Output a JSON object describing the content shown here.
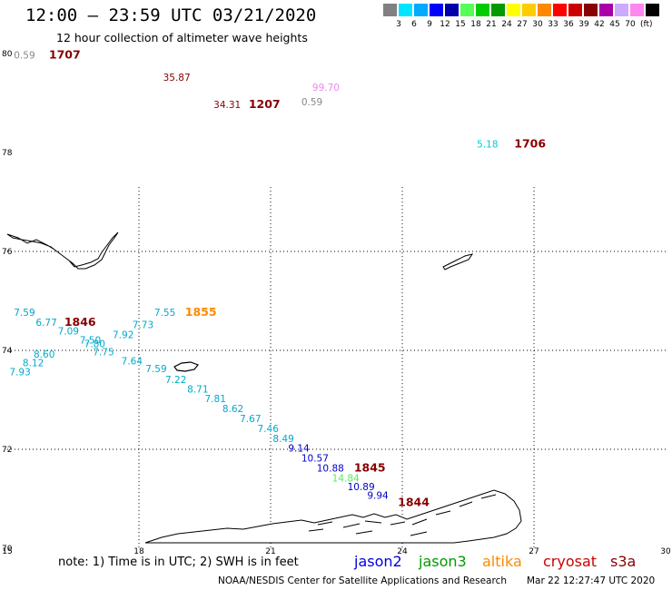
{
  "header": {
    "title": "12:00 – 23:59 UTC 03/21/2020",
    "subtitle": "12 hour collection of altimeter wave heights"
  },
  "legend": {
    "unit": "(ft)",
    "items": [
      {
        "value": "",
        "color": "#808080"
      },
      {
        "value": "3",
        "color": "#00e5ff"
      },
      {
        "value": "6",
        "color": "#00aaff"
      },
      {
        "value": "9",
        "color": "#0000ff"
      },
      {
        "value": "12",
        "color": "#0000aa"
      },
      {
        "value": "15",
        "color": "#55ff55"
      },
      {
        "value": "18",
        "color": "#00cc00"
      },
      {
        "value": "21",
        "color": "#009900"
      },
      {
        "value": "24",
        "color": "#ffff00"
      },
      {
        "value": "27",
        "color": "#ffcc00"
      },
      {
        "value": "30",
        "color": "#ff8800"
      },
      {
        "value": "33",
        "color": "#ff0000"
      },
      {
        "value": "36",
        "color": "#cc0000"
      },
      {
        "value": "39",
        "color": "#880000"
      },
      {
        "value": "42",
        "color": "#aa00aa"
      },
      {
        "value": "45",
        "color": "#ccaaff"
      },
      {
        "value": "70",
        "color": "#ff88ee"
      },
      {
        "value": "",
        "color": "#000000"
      }
    ]
  },
  "axes": {
    "lon_ticks": [
      "15",
      "18",
      "21",
      "24",
      "27",
      "30"
    ],
    "lat_ticks": [
      "80",
      "78",
      "76",
      "74",
      "72",
      "70"
    ]
  },
  "labels": [
    {
      "text": "0.59",
      "lon": 15.15,
      "lat": 79.9,
      "color": "#888888"
    },
    {
      "text": "1707",
      "lon": 15.95,
      "lat": 79.9,
      "color": "#880000",
      "bold": true
    },
    {
      "text": "35.87",
      "lon": 18.55,
      "lat": 79.45,
      "color": "#880000"
    },
    {
      "text": "99.70",
      "lon": 21.95,
      "lat": 79.25,
      "color": "#ee88ee"
    },
    {
      "text": "34.31",
      "lon": 19.7,
      "lat": 78.9,
      "color": "#880000"
    },
    {
      "text": "1207",
      "lon": 20.5,
      "lat": 78.9,
      "color": "#880000",
      "bold": true
    },
    {
      "text": "0.59",
      "lon": 21.7,
      "lat": 78.95,
      "color": "#888888"
    },
    {
      "text": "5.18",
      "lon": 25.7,
      "lat": 78.1,
      "color": "#00c8dc"
    },
    {
      "text": "1706",
      "lon": 26.55,
      "lat": 78.1,
      "color": "#880000",
      "bold": true
    },
    {
      "text": "7.59",
      "lon": 15.15,
      "lat": 74.7,
      "color": "#00aacc"
    },
    {
      "text": "6.77",
      "lon": 15.65,
      "lat": 74.5,
      "color": "#00aacc"
    },
    {
      "text": "1846",
      "lon": 16.3,
      "lat": 74.5,
      "color": "#880000",
      "bold": true
    },
    {
      "text": "7.09",
      "lon": 16.15,
      "lat": 74.32,
      "color": "#00aacc"
    },
    {
      "text": "7.50",
      "lon": 16.65,
      "lat": 74.14,
      "color": "#00aacc"
    },
    {
      "text": "7.80",
      "lon": 16.75,
      "lat": 74.06,
      "color": "#00aacc"
    },
    {
      "text": "7.92",
      "lon": 17.4,
      "lat": 74.25,
      "color": "#00aacc"
    },
    {
      "text": "7.73",
      "lon": 17.85,
      "lat": 74.45,
      "color": "#00aacc"
    },
    {
      "text": "7.55",
      "lon": 18.35,
      "lat": 74.7,
      "color": "#00aacc"
    },
    {
      "text": "1855",
      "lon": 19.05,
      "lat": 74.7,
      "color": "#ff8800",
      "bold": true
    },
    {
      "text": "8.60",
      "lon": 15.6,
      "lat": 73.85,
      "color": "#00aacc"
    },
    {
      "text": "7.75",
      "lon": 16.95,
      "lat": 73.9,
      "color": "#00aacc"
    },
    {
      "text": "8.12",
      "lon": 15.35,
      "lat": 73.68,
      "color": "#00aacc"
    },
    {
      "text": "7.64",
      "lon": 17.6,
      "lat": 73.72,
      "color": "#00aacc"
    },
    {
      "text": "7.93",
      "lon": 15.05,
      "lat": 73.5,
      "color": "#00aacc"
    },
    {
      "text": "7.59",
      "lon": 18.15,
      "lat": 73.56,
      "color": "#00aacc"
    },
    {
      "text": "7.22",
      "lon": 18.6,
      "lat": 73.34,
      "color": "#00aacc"
    },
    {
      "text": "8.71",
      "lon": 19.1,
      "lat": 73.15,
      "color": "#00aacc"
    },
    {
      "text": "7.81",
      "lon": 19.5,
      "lat": 72.95,
      "color": "#00aacc"
    },
    {
      "text": "8.62",
      "lon": 19.9,
      "lat": 72.75,
      "color": "#00aacc"
    },
    {
      "text": "7.67",
      "lon": 20.3,
      "lat": 72.55,
      "color": "#00aacc"
    },
    {
      "text": "7.46",
      "lon": 20.7,
      "lat": 72.35,
      "color": "#00aacc"
    },
    {
      "text": "8.49",
      "lon": 21.05,
      "lat": 72.15,
      "color": "#00aacc"
    },
    {
      "text": "9.14",
      "lon": 21.4,
      "lat": 71.95,
      "color": "#0000cc"
    },
    {
      "text": "10.57",
      "lon": 21.7,
      "lat": 71.75,
      "color": "#0000cc"
    },
    {
      "text": "10.88",
      "lon": 22.05,
      "lat": 71.55,
      "color": "#0000cc"
    },
    {
      "text": "1845",
      "lon": 22.9,
      "lat": 71.55,
      "color": "#880000",
      "bold": true
    },
    {
      "text": "14.84",
      "lon": 22.4,
      "lat": 71.35,
      "color": "#55ee55"
    },
    {
      "text": "10.89",
      "lon": 22.75,
      "lat": 71.17,
      "color": "#0000cc"
    },
    {
      "text": "9.94",
      "lon": 23.2,
      "lat": 71.0,
      "color": "#0000cc"
    },
    {
      "text": "1844",
      "lon": 23.9,
      "lat": 70.85,
      "color": "#880000",
      "bold": true
    }
  ],
  "note": "note: 1) Time is in UTC; 2) SWH is in feet",
  "missions": [
    {
      "name": "jason2",
      "color": "#0000dd"
    },
    {
      "name": "jason3",
      "color": "#009900"
    },
    {
      "name": "altika",
      "color": "#ff8800"
    },
    {
      "name": "cryosat",
      "color": "#cc0000"
    },
    {
      "name": "s3a",
      "color": "#880000"
    }
  ],
  "footer": {
    "credit": "NOAA/NESDIS Center for Satellite Applications and Research",
    "timestamp": "Mar 22 12:27:47 UTC 2020"
  }
}
